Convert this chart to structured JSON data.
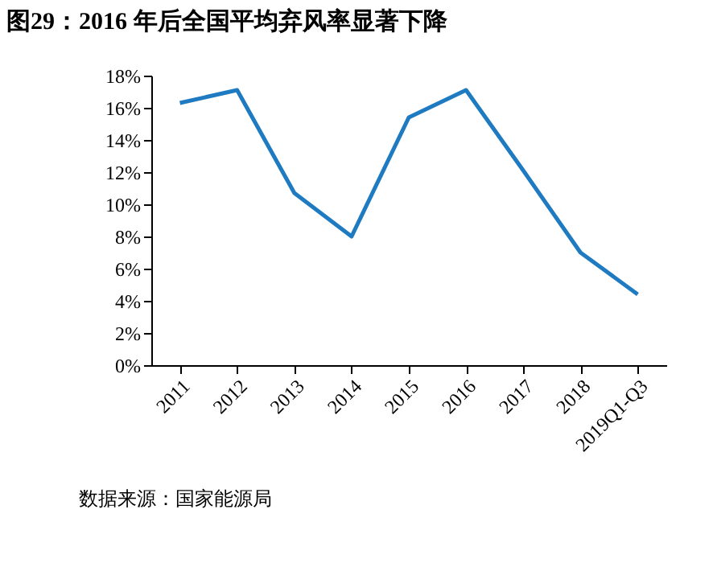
{
  "chart_data": {
    "type": "line",
    "title": "图29：2016 年后全国平均弃风率显著下降",
    "categories": [
      "2011",
      "2012",
      "2013",
      "2014",
      "2015",
      "2016",
      "2017",
      "2018",
      "2019Q1-Q3"
    ],
    "series": [
      {
        "color": "#1f7bc1",
        "values": [
          16.3,
          17.1,
          10.7,
          8.0,
          15.4,
          17.1,
          12.1,
          7.0,
          4.4
        ]
      }
    ],
    "ylim": [
      0,
      18
    ],
    "yticks": [
      {
        "value": 0,
        "label": "0%"
      },
      {
        "value": 2,
        "label": "2%"
      },
      {
        "value": 4,
        "label": "4%"
      },
      {
        "value": 6,
        "label": "6%"
      },
      {
        "value": 8,
        "label": "8%"
      },
      {
        "value": 10,
        "label": "10%"
      },
      {
        "value": 12,
        "label": "12%"
      },
      {
        "value": 14,
        "label": "14%"
      },
      {
        "value": 16,
        "label": "16%"
      },
      {
        "value": 18,
        "label": "18%"
      }
    ],
    "grid": false,
    "marker": "none",
    "line_style": "solid",
    "annotations": [
      "数据来源：国家能源局"
    ]
  }
}
